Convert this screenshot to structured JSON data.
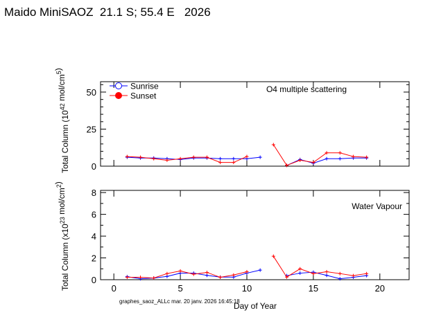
{
  "title": "Maido MiniSAOZ  21.1 S; 55.4 E   2026",
  "footer": "graphes_saoz_ALLc mar. 20 janv. 2026 16:45:18",
  "colors": {
    "sunrise": "#0000ff",
    "sunset": "#ff0000"
  },
  "chart_data": [
    {
      "type": "line",
      "title": "O4 multiple scattering",
      "ylabel": "Total Column (10^42 mol/cm^5)",
      "ylabel_parts": {
        "pre": "Total Column (10",
        "sup": "42",
        "mid": " mol/cm",
        "sup2": "5",
        "post": ")"
      },
      "xlabel": "",
      "xlim": [
        -1,
        22.2
      ],
      "ylim": [
        0,
        57
      ],
      "yticks": [
        0,
        25,
        50
      ],
      "legend": {
        "position": "top-left",
        "entries": [
          "Sunrise",
          "Sunset"
        ]
      },
      "series": [
        {
          "name": "Sunrise",
          "x": [
            1,
            2,
            3,
            4,
            5,
            6,
            7,
            8,
            9,
            10,
            11,
            13,
            14,
            15,
            16,
            17,
            18,
            19
          ],
          "y": [
            6,
            5.5,
            5.5,
            5,
            4.5,
            5.5,
            5.5,
            5,
            5,
            5,
            6,
            0.5,
            4.5,
            2,
            5,
            5,
            5.5,
            5.5
          ]
        },
        {
          "name": "Sunset",
          "x": [
            1,
            2,
            3,
            4,
            5,
            6,
            7,
            8,
            9,
            10,
            12,
            13,
            14,
            15,
            16,
            17,
            18,
            19
          ],
          "y": [
            6.5,
            6,
            5,
            4,
            5,
            6,
            6,
            2.5,
            2.5,
            6.5,
            14.5,
            0.5,
            4,
            2.5,
            9,
            9,
            6.5,
            6
          ]
        }
      ]
    },
    {
      "type": "line",
      "title": "Water Vapour",
      "ylabel": "Total Column (x10^23 mol/cm^2)",
      "ylabel_parts": {
        "pre": "Total Column (x10",
        "sup": "23",
        "mid": " mol/cm",
        "sup2": "2",
        "post": ")"
      },
      "xlabel": "Day of Year",
      "xlim": [
        -1,
        22.2
      ],
      "ylim": [
        0,
        8.2
      ],
      "yticks": [
        0,
        2,
        4,
        6,
        8
      ],
      "xticks": [
        0,
        5,
        10,
        15,
        20
      ],
      "series": [
        {
          "name": "Sunrise",
          "x": [
            1,
            2,
            3,
            4,
            5,
            6,
            7,
            8,
            9,
            10,
            11,
            13,
            14,
            15,
            16,
            17,
            18,
            19
          ],
          "y": [
            0.28,
            0.09,
            0.15,
            0.3,
            0.6,
            0.6,
            0.4,
            0.24,
            0.24,
            0.6,
            0.88,
            0.37,
            0.6,
            0.69,
            0.4,
            0.09,
            0.22,
            0.37
          ]
        },
        {
          "name": "Sunset",
          "x": [
            1,
            2,
            3,
            4,
            5,
            6,
            7,
            8,
            9,
            10,
            12,
            13,
            14,
            15,
            16,
            17,
            18,
            19
          ],
          "y": [
            0.22,
            0.22,
            0.15,
            0.56,
            0.8,
            0.5,
            0.67,
            0.22,
            0.43,
            0.73,
            2.15,
            0.24,
            1.0,
            0.56,
            0.73,
            0.56,
            0.37,
            0.56
          ]
        }
      ]
    }
  ]
}
